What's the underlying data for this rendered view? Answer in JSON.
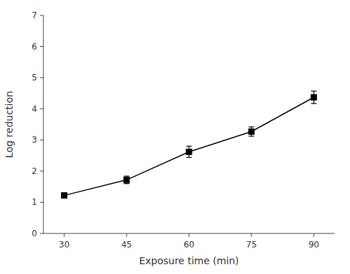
{
  "chart_data": {
    "type": "line",
    "xlabel": "Exposure time (min)",
    "ylabel": "Log reduction",
    "x": [
      30,
      45,
      60,
      75,
      90
    ],
    "values": [
      1.22,
      1.72,
      2.62,
      3.27,
      4.37
    ],
    "errors": [
      0.08,
      0.12,
      0.18,
      0.15,
      0.2
    ],
    "color": "black",
    "marker": "square",
    "line_style": "solid",
    "xlim": [
      25,
      95
    ],
    "ylim": [
      0,
      7
    ],
    "xticks": [
      30,
      45,
      60,
      75,
      90
    ],
    "yticks": [
      0,
      1,
      2,
      3,
      4,
      5,
      6,
      7
    ],
    "grid": false
  }
}
